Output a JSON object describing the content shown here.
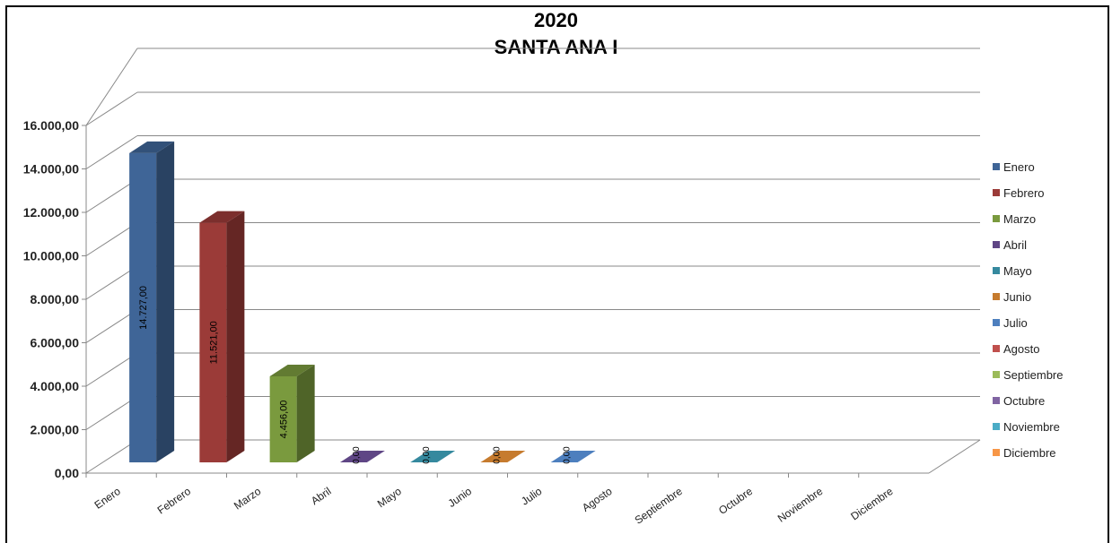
{
  "chart_data": {
    "type": "bar",
    "title_line1": "2020",
    "title_line2": "SANTA ANA I",
    "categories": [
      "Enero",
      "Febrero",
      "Marzo",
      "Abril",
      "Mayo",
      "Junio",
      "Julio",
      "Agosto",
      "Septiembre",
      "Octubre",
      "Noviembre",
      "Diciembre"
    ],
    "values": [
      14727,
      11521,
      4456,
      0,
      0,
      0,
      0,
      null,
      null,
      null,
      null,
      null
    ],
    "data_labels": [
      "14.727,00",
      "11.521,00",
      "4.456,00",
      "0,00",
      "0,00",
      "0,00",
      "0,00",
      "",
      "",
      "",
      "",
      ""
    ],
    "y_ticks": [
      0,
      2000,
      4000,
      6000,
      8000,
      10000,
      12000,
      14000,
      16000
    ],
    "y_tick_labels": [
      "0,00",
      "2.000,00",
      "4.000,00",
      "6.000,00",
      "8.000,00",
      "10.000,00",
      "12.000,00",
      "14.000,00",
      "16.000,00"
    ],
    "ylim": [
      0,
      16000
    ],
    "legend": [
      "Enero",
      "Febrero",
      "Marzo",
      "Abril",
      "Mayo",
      "Junio",
      "Julio",
      "Agosto",
      "Septiembre",
      "Octubre",
      "Noviembre",
      "Diciembre"
    ],
    "legend_position": "right",
    "grid": true,
    "colors": [
      "#3f6597",
      "#9b3b38",
      "#7a9a3e",
      "#5f4685",
      "#35899e",
      "#c67b2e",
      "#4d7fbe",
      "#c0504d",
      "#9bbb59",
      "#8064a2",
      "#4bacc6",
      "#f79646"
    ]
  }
}
